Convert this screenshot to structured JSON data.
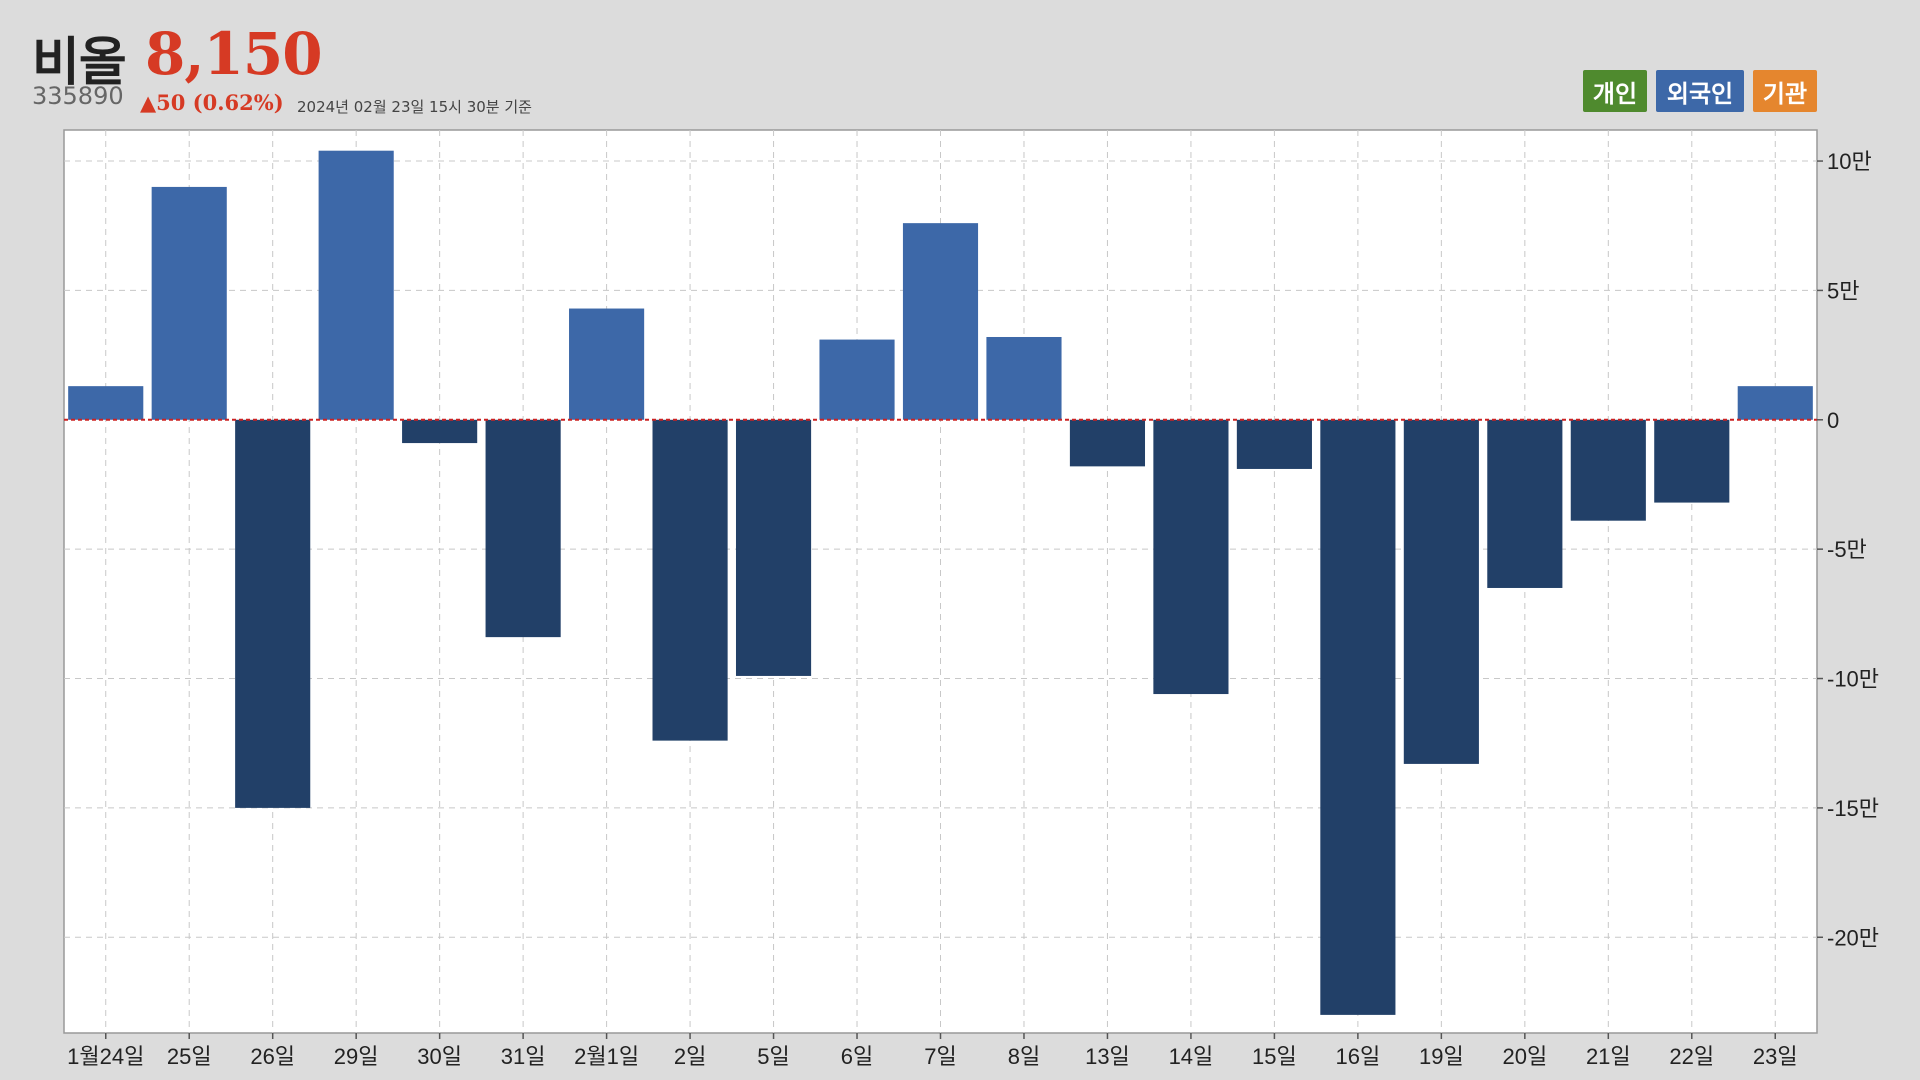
{
  "header": {
    "name": "비올",
    "price": "8,150",
    "code": "335890",
    "change": "▲50 (0.62%)",
    "asof": "2024년 02월 23일 15시 30분 기준"
  },
  "legend": {
    "individual": "개인",
    "foreign": "외국인",
    "institution": "기관"
  },
  "colors": {
    "positive": "#3d68a8",
    "negative": "#224068",
    "zero_line": "#cc2222",
    "individual": "#4f8a2e",
    "foreign": "#3d68a8",
    "institution": "#e5862e"
  },
  "chart_data": {
    "type": "bar",
    "title": "",
    "xlabel": "",
    "ylabel": "",
    "categories": [
      "1월24일",
      "25일",
      "26일",
      "29일",
      "30일",
      "31일",
      "2월1일",
      "2일",
      "5일",
      "6일",
      "7일",
      "8일",
      "13일",
      "14일",
      "15일",
      "16일",
      "19일",
      "20일",
      "21일",
      "22일",
      "23일"
    ],
    "values": [
      13000,
      90000,
      -150000,
      104000,
      -9000,
      -84000,
      43000,
      -124000,
      -99000,
      31000,
      76000,
      32000,
      -18000,
      -106000,
      -19000,
      -230000,
      -133000,
      -65000,
      -39000,
      -32000,
      13000
    ],
    "ylim": [
      -237000,
      112000
    ],
    "yticks": [
      100000,
      50000,
      0,
      -50000,
      -100000,
      -150000,
      -200000
    ],
    "ytick_labels": [
      "10만",
      "5만",
      "0",
      "-5만",
      "-10만",
      "-15만",
      "-20만"
    ],
    "grid": true,
    "y_axis_side": "right"
  }
}
